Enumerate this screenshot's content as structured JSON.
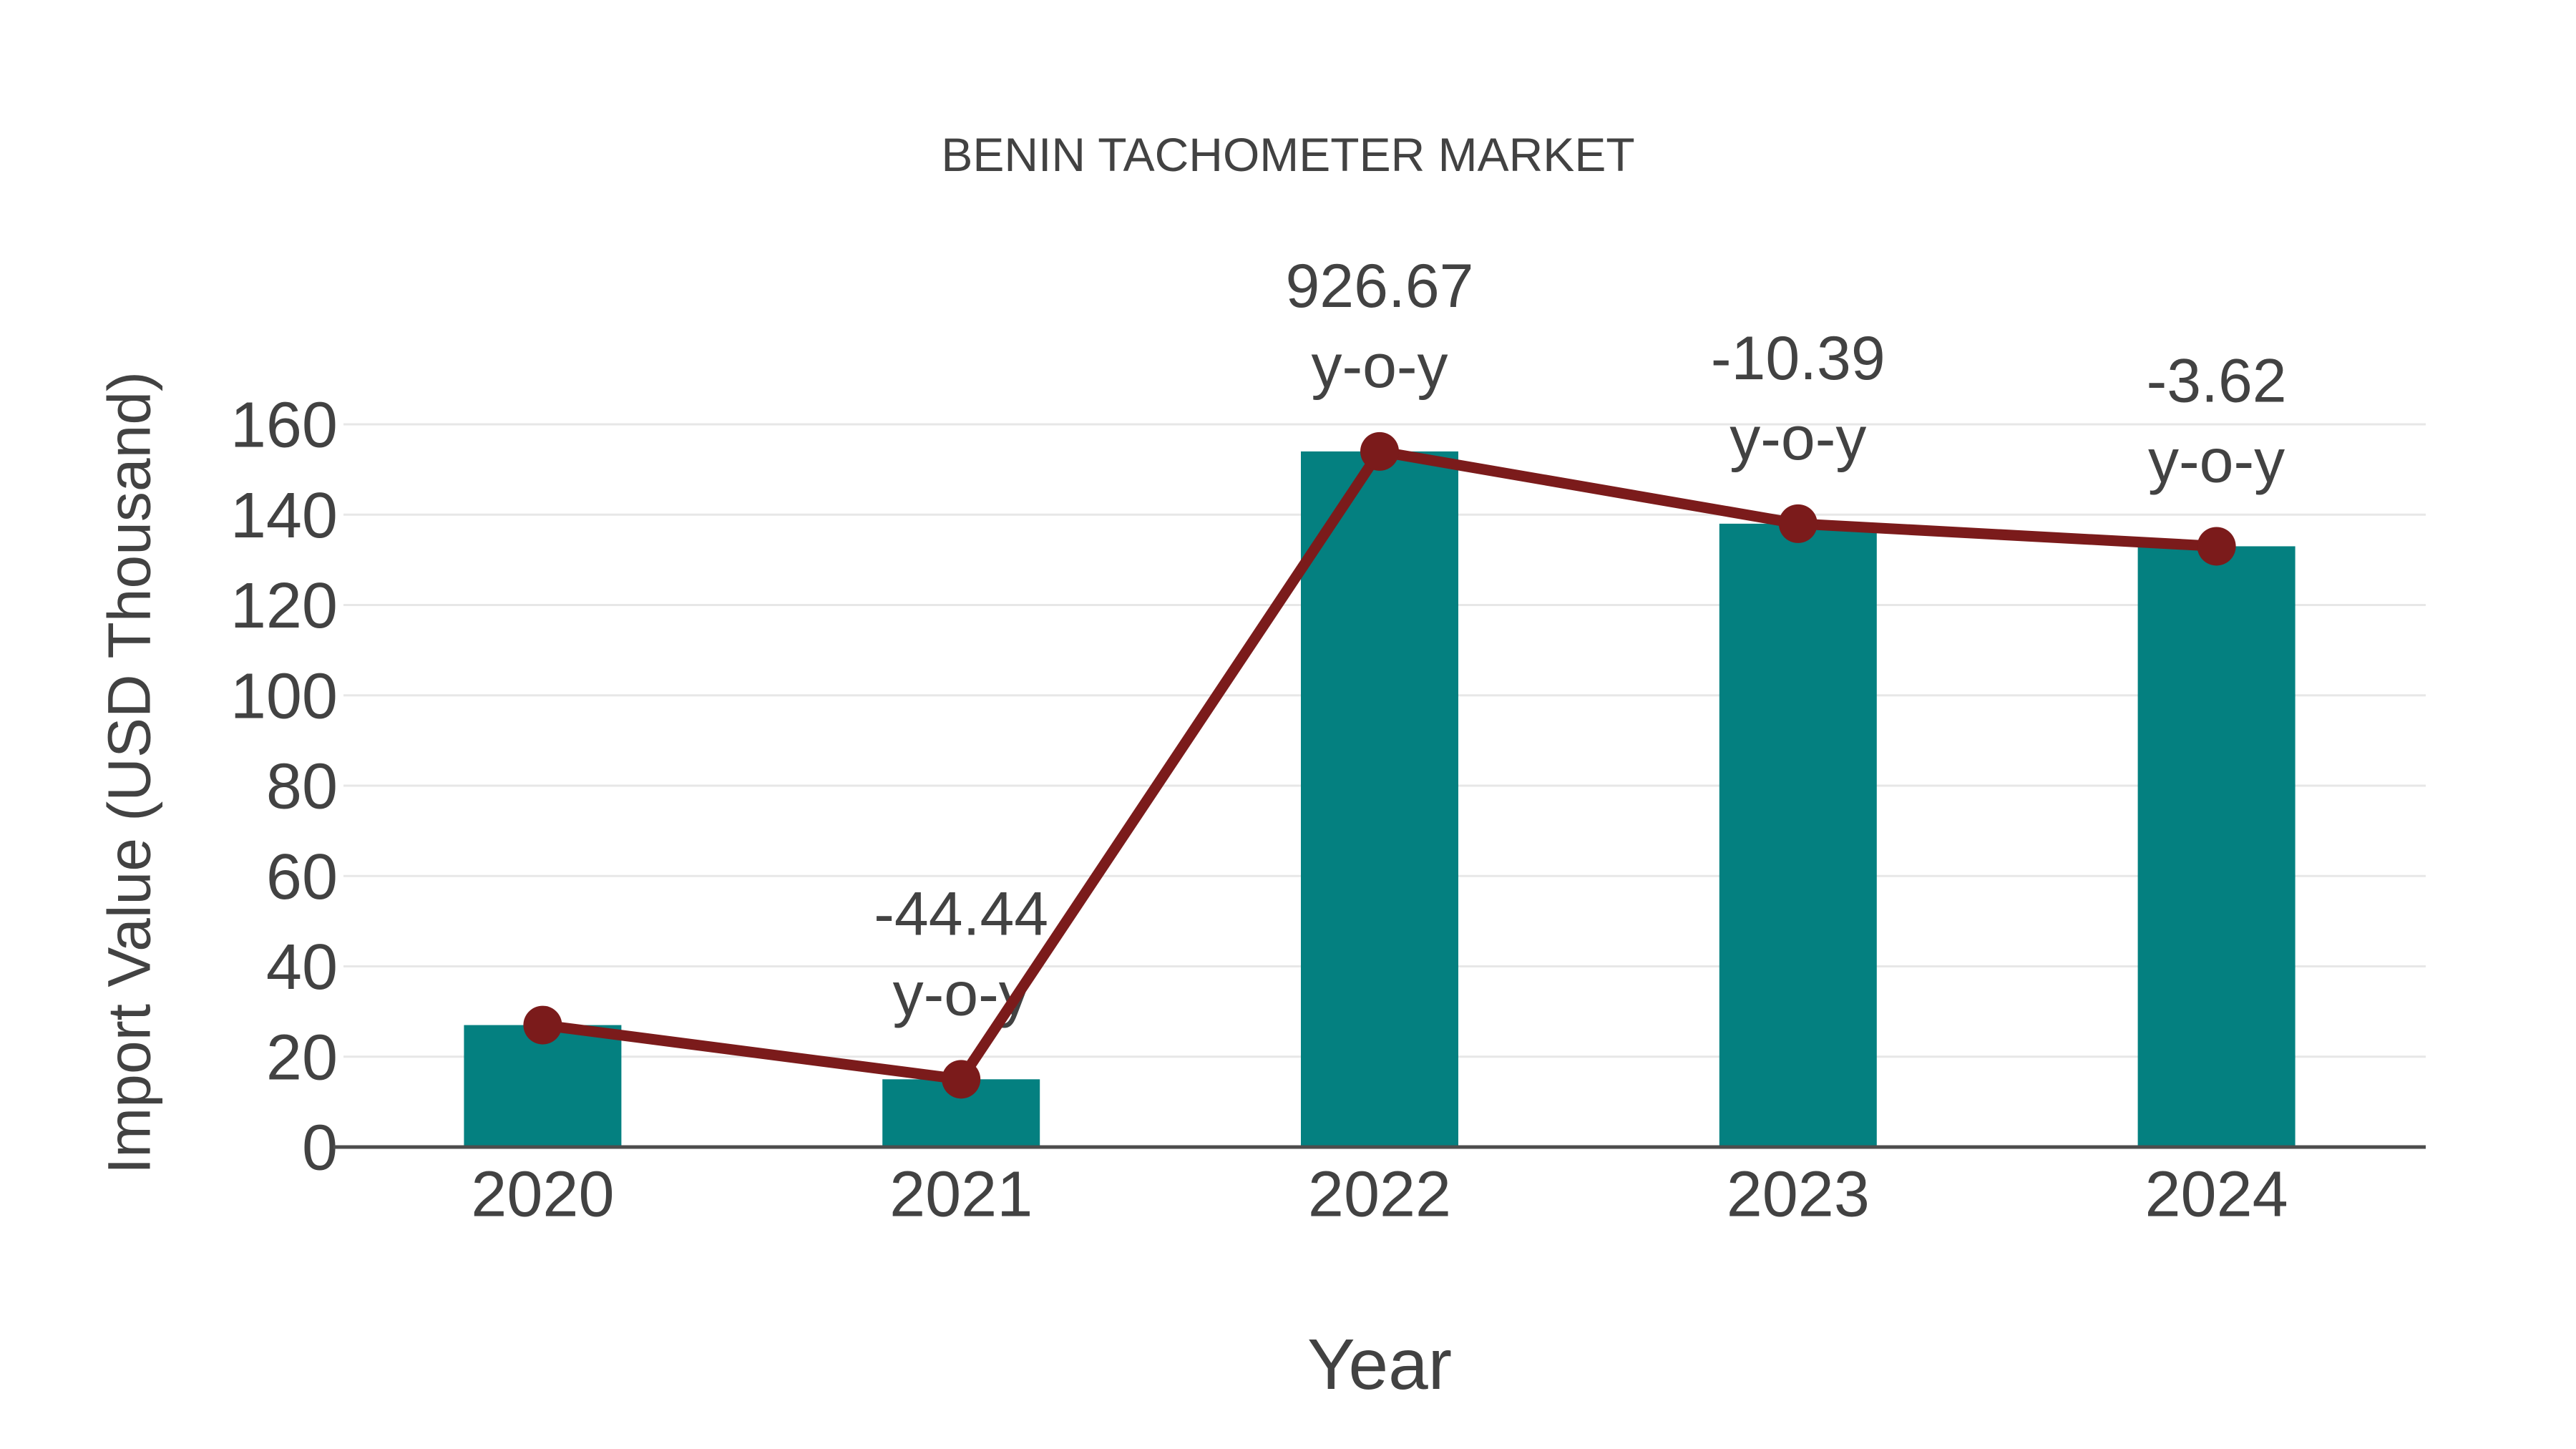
{
  "chart_data": {
    "type": "bar",
    "title": "BENIN TACHOMETER MARKET",
    "xlabel": "Year",
    "ylabel": "Import Value (USD Thousand)",
    "categories": [
      "2020",
      "2021",
      "2022",
      "2023",
      "2024"
    ],
    "series": [
      {
        "name": "import-value-bars",
        "type": "bar",
        "values": [
          27,
          15,
          154,
          138,
          133
        ]
      },
      {
        "name": "import-value-line",
        "type": "line",
        "values": [
          27,
          15,
          154,
          138,
          133
        ]
      }
    ],
    "annotations": [
      {
        "category": "2021",
        "value": "-44.44",
        "suffix": "y-o-y"
      },
      {
        "category": "2022",
        "value": "926.67",
        "suffix": "y-o-y"
      },
      {
        "category": "2023",
        "value": "-10.39",
        "suffix": "y-o-y"
      },
      {
        "category": "2024",
        "value": "-3.62",
        "suffix": "y-o-y"
      }
    ],
    "ylim": [
      0,
      160
    ],
    "yticks": [
      0,
      20,
      40,
      60,
      80,
      100,
      120,
      140,
      160
    ],
    "grid": "horizontal",
    "legend": "none",
    "colors": {
      "bar": "#048080",
      "line": "#7B1B1B",
      "marker": "#7B1B1B",
      "grid": "#E7E7E7",
      "axis": "#4D4D4D",
      "text": "#424242",
      "background": "#FFFFFF"
    }
  }
}
